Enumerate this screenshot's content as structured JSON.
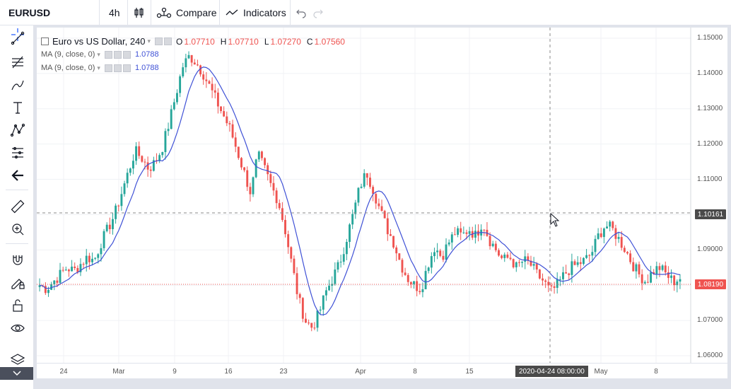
{
  "toolbar": {
    "symbol": "EURUSD",
    "interval": "4h",
    "compare_label": "Compare",
    "indicators_label": "Indicators"
  },
  "sidebar": {
    "tools": [
      "crosshair-icon",
      "trend-line-icon",
      "fib-tool-icon",
      "brush-icon",
      "text-icon",
      "pattern-icon",
      "measure-lines-icon",
      "back-arrow-icon",
      "ruler-icon",
      "zoom-in-icon",
      "magnet-icon",
      "lock-pencil-icon",
      "unlock-icon",
      "eye-icon",
      "layers-icon",
      "chevron-down-icon"
    ]
  },
  "legend": {
    "title": "Euro vs US Dollar, 240",
    "o_label": "O",
    "o_value": "1.07710",
    "h_label": "H",
    "h_value": "1.07710",
    "l_label": "L",
    "l_value": "1.07270",
    "c_label": "C",
    "c_value": "1.07560",
    "ma1_label": "MA (9, close, 0)",
    "ma1_value": "1.0788",
    "ma2_label": "MA (9, close, 0)",
    "ma2_value": "1.0788"
  },
  "price_labels": {
    "crosshair": "1.10161",
    "last": "1.08190"
  },
  "crosshair_time": "2020-04-24 08:00:00",
  "colors": {
    "up": "#26a69a",
    "down": "#ef5350",
    "ma": "#3f51d6",
    "last_price": "#ef5350",
    "crosshair_tag": "#4a4a4a"
  },
  "chart_data": {
    "type": "candlestick",
    "y_ticks": [
      "1.15000",
      "1.14000",
      "1.13000",
      "1.12000",
      "1.11000",
      "1.10000",
      "1.09000",
      "1.08000",
      "1.07000",
      "1.06000"
    ],
    "x_ticks": [
      "24",
      "Mar",
      "9",
      "16",
      "23",
      "Apr",
      "8",
      "15",
      "May",
      "8"
    ],
    "ylim": [
      1.058,
      1.153
    ],
    "close_path": [
      1.08,
      1.079,
      1.081,
      1.083,
      1.085,
      1.084,
      1.086,
      1.088,
      1.087,
      1.092,
      1.096,
      1.1,
      1.106,
      1.112,
      1.118,
      1.116,
      1.113,
      1.115,
      1.119,
      1.126,
      1.134,
      1.142,
      1.145,
      1.143,
      1.14,
      1.136,
      1.132,
      1.128,
      1.124,
      1.118,
      1.112,
      1.106,
      1.117,
      1.113,
      1.108,
      1.104,
      1.096,
      1.086,
      1.076,
      1.07,
      1.068,
      1.072,
      1.078,
      1.082,
      1.086,
      1.093,
      1.1,
      1.108,
      1.112,
      1.107,
      1.101,
      1.096,
      1.092,
      1.086,
      1.082,
      1.08,
      1.079,
      1.086,
      1.091,
      1.088,
      1.092,
      1.095,
      1.094,
      1.096,
      1.094,
      1.098,
      1.093,
      1.09,
      1.087,
      1.088,
      1.085,
      1.087,
      1.086,
      1.083,
      1.081,
      1.078,
      1.08,
      1.083,
      1.085,
      1.086,
      1.087,
      1.089,
      1.094,
      1.097,
      1.096,
      1.093,
      1.09,
      1.086,
      1.083,
      1.081,
      1.084,
      1.085,
      1.083,
      1.081,
      1.082
    ]
  }
}
